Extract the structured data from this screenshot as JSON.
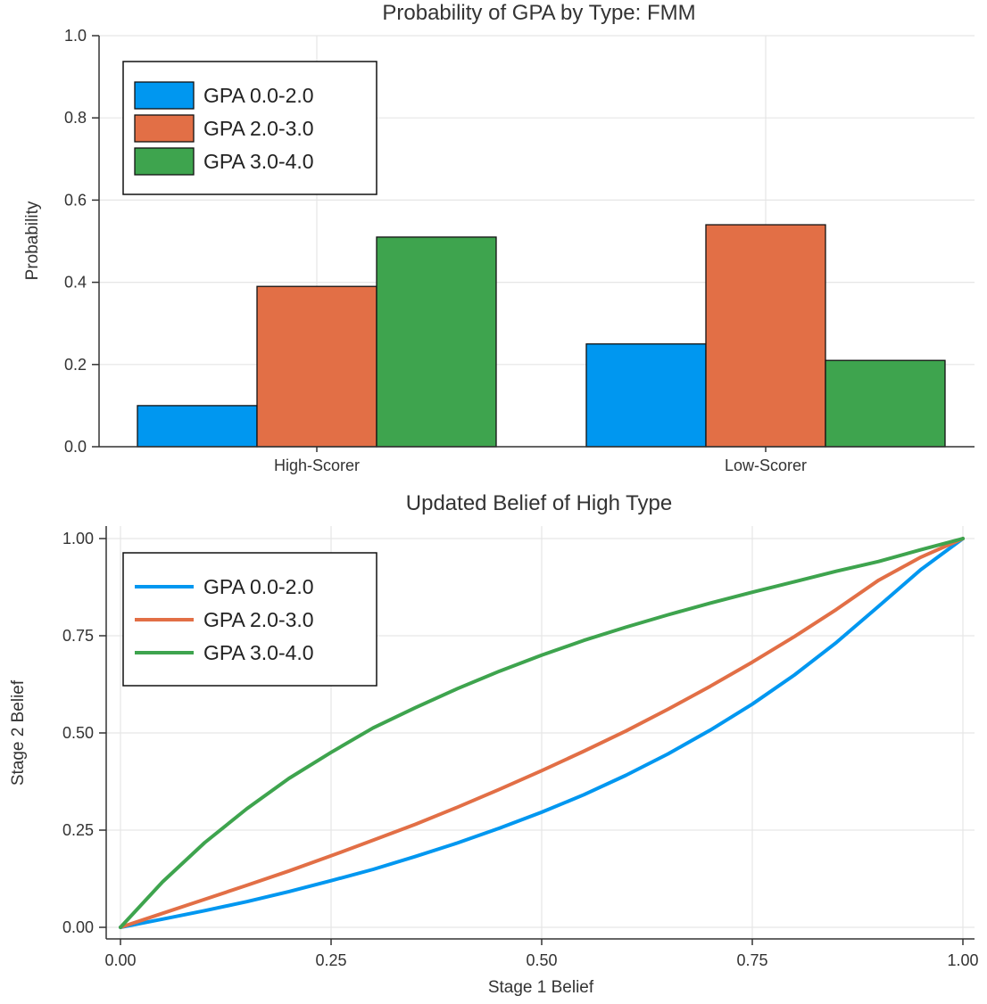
{
  "colors": {
    "gpa_0_2": "#0097f0",
    "gpa_2_3": "#e26f46",
    "gpa_3_4": "#3ea44e"
  },
  "chart_data": [
    {
      "type": "bar",
      "title": "Probability of GPA by Type: FMM",
      "xlabel": "",
      "ylabel": "Probability",
      "categories": [
        "High-Scorer",
        "Low-Scorer"
      ],
      "ylim": [
        0,
        1.0
      ],
      "yticks": [
        0.0,
        0.2,
        0.4,
        0.6,
        0.8,
        1.0
      ],
      "ytick_labels": [
        "0.0",
        "0.2",
        "0.4",
        "0.6",
        "0.8",
        "1.0"
      ],
      "grid": true,
      "legend_position": "top-left",
      "series": [
        {
          "name": "GPA 0.0-2.0",
          "color": "#0097f0",
          "values": [
            0.1,
            0.25
          ]
        },
        {
          "name": "GPA 2.0-3.0",
          "color": "#e26f46",
          "values": [
            0.39,
            0.54
          ]
        },
        {
          "name": "GPA 3.0-4.0",
          "color": "#3ea44e",
          "values": [
            0.51,
            0.21
          ]
        }
      ]
    },
    {
      "type": "line",
      "title": "Updated Belief of High Type",
      "xlabel": "Stage 1 Belief",
      "ylabel": "Stage 2 Belief",
      "xlim": [
        0,
        1
      ],
      "ylim": [
        0,
        1
      ],
      "xticks": [
        0,
        0.25,
        0.5,
        0.75,
        1.0
      ],
      "xtick_labels": [
        "0.00",
        "0.25",
        "0.50",
        "0.75",
        "1.00"
      ],
      "yticks": [
        0,
        0.25,
        0.5,
        0.75,
        1.0
      ],
      "ytick_labels": [
        "0.00",
        "0.25",
        "0.50",
        "0.75",
        "1.00"
      ],
      "grid": true,
      "legend_position": "top-left",
      "x": [
        0,
        0.05,
        0.1,
        0.15,
        0.2,
        0.25,
        0.3,
        0.35,
        0.4,
        0.45,
        0.5,
        0.55,
        0.6,
        0.65,
        0.7,
        0.75,
        0.8,
        0.85,
        0.9,
        0.95,
        1.0
      ],
      "series": [
        {
          "name": "GPA 0.0-2.0",
          "color": "#0097f0",
          "values": [
            0,
            0.021,
            0.043,
            0.066,
            0.092,
            0.12,
            0.149,
            0.182,
            0.217,
            0.255,
            0.296,
            0.341,
            0.391,
            0.446,
            0.507,
            0.574,
            0.649,
            0.733,
            0.826,
            0.92,
            1.0
          ]
        },
        {
          "name": "GPA 2.0-3.0",
          "color": "#e26f46",
          "values": [
            0,
            0.036,
            0.072,
            0.108,
            0.145,
            0.184,
            0.224,
            0.265,
            0.309,
            0.355,
            0.403,
            0.453,
            0.505,
            0.561,
            0.62,
            0.682,
            0.748,
            0.818,
            0.893,
            0.952,
            1.0
          ]
        },
        {
          "name": "GPA 3.0-4.0",
          "color": "#3ea44e",
          "values": [
            0,
            0.117,
            0.218,
            0.305,
            0.383,
            0.45,
            0.513,
            0.565,
            0.614,
            0.659,
            0.7,
            0.738,
            0.772,
            0.804,
            0.834,
            0.862,
            0.889,
            0.916,
            0.941,
            0.971,
            1.0
          ]
        }
      ]
    }
  ]
}
